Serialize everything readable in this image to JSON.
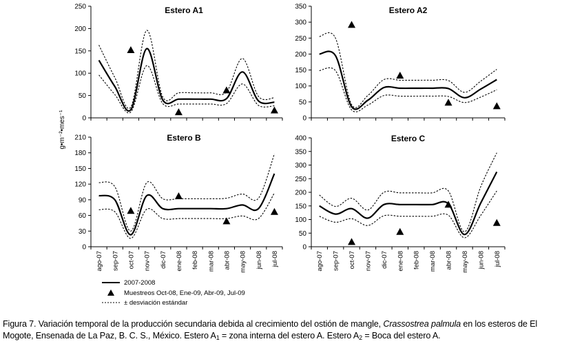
{
  "y_axis_label": "g•m⁻²•mes⁻¹",
  "legend": {
    "line_label": "2007-2008",
    "marker_label": "Muestreos Oct-08, Ene-09, Abr-09, Jul-09",
    "dash_label": "± desviación estándar"
  },
  "caption": {
    "lead": "Figura 7. Variación temporal de la producción secundaria debida al crecimiento del ostión de mangle, ",
    "species": "Crassostrea palmula",
    "rest": " en los esteros de El Mogote, Ensenada de La Paz, B. C. S., México. Estero A",
    "sub1": "1",
    "mid": " = zona interna del estero A. Estero A",
    "sub2": "2",
    "end": " = Boca del estero A."
  },
  "chart_data": [
    {
      "type": "line",
      "title": "Estero A1",
      "ylim": [
        0,
        250
      ],
      "yticks": [
        0,
        50,
        100,
        150,
        200,
        250
      ],
      "categories": [
        "ago-07",
        "sep-07",
        "oct-07",
        "nov-07",
        "dic-07",
        "ene-08",
        "feb-08",
        "mar-08",
        "abr-08",
        "may-08",
        "jun-08",
        "jul-08"
      ],
      "series": [
        {
          "name": "2007-2008",
          "values": [
            129,
            70,
            18,
            155,
            40,
            42,
            42,
            42,
            43,
            103,
            38,
            35
          ]
        },
        {
          "name": "+ desviación estándar",
          "values": [
            163,
            90,
            24,
            196,
            47,
            56,
            56,
            56,
            58,
            133,
            48,
            45
          ]
        },
        {
          "name": "- desviación estándar",
          "values": [
            96,
            52,
            13,
            117,
            32,
            31,
            31,
            31,
            32,
            76,
            28,
            27
          ]
        }
      ],
      "samples": {
        "name": "Muestreos Oct-08, Ene-09, Abr-09, Jul-09",
        "x": [
          "oct-07",
          "ene-08",
          "abr-08",
          "jul-08"
        ],
        "values": [
          152,
          13,
          62,
          17
        ]
      }
    },
    {
      "type": "line",
      "title": "Estero A2",
      "ylim": [
        0,
        350
      ],
      "yticks": [
        0,
        50,
        100,
        150,
        200,
        250,
        300,
        350
      ],
      "categories": [
        "ago-07",
        "sep-07",
        "oct-07",
        "nov-07",
        "dic-07",
        "ene-08",
        "feb-08",
        "mar-08",
        "abr-08",
        "may-08",
        "jun-08",
        "jul-08"
      ],
      "series": [
        {
          "name": "2007-2008",
          "values": [
            200,
            195,
            35,
            55,
            95,
            93,
            93,
            93,
            92,
            63,
            90,
            120
          ]
        },
        {
          "name": "+ desviación estándar",
          "values": [
            255,
            250,
            42,
            70,
            120,
            118,
            118,
            118,
            117,
            80,
            115,
            152
          ]
        },
        {
          "name": "- desviación estándar",
          "values": [
            148,
            148,
            25,
            40,
            70,
            68,
            68,
            68,
            67,
            48,
            65,
            88
          ]
        }
      ],
      "samples": {
        "name": "Muestreos Oct-08, Ene-09, Abr-09, Jul-09",
        "x": [
          "oct-07",
          "ene-08",
          "abr-08",
          "jul-08"
        ],
        "values": [
          292,
          133,
          48,
          37
        ]
      }
    },
    {
      "type": "line",
      "title": "Estero B",
      "ylim": [
        0,
        210
      ],
      "yticks": [
        0,
        30,
        60,
        90,
        120,
        150,
        180,
        210
      ],
      "categories": [
        "ago-07",
        "sep-07",
        "oct-07",
        "nov-07",
        "dic-07",
        "ene-08",
        "feb-08",
        "mar-08",
        "abr-08",
        "may-08",
        "jun-08",
        "jul-08"
      ],
      "series": [
        {
          "name": "2007-2008",
          "values": [
            98,
            90,
            23,
            98,
            73,
            73,
            73,
            73,
            73,
            80,
            73,
            140
          ]
        },
        {
          "name": "+ desviación estándar",
          "values": [
            123,
            115,
            30,
            123,
            92,
            92,
            92,
            92,
            93,
            101,
            93,
            178
          ]
        },
        {
          "name": "- desviación estándar",
          "values": [
            71,
            67,
            16,
            72,
            54,
            54,
            54,
            54,
            54,
            59,
            54,
            103
          ]
        }
      ],
      "samples": {
        "name": "Muestreos Oct-08, Ene-09, Abr-09, Jul-09",
        "x": [
          "oct-07",
          "ene-08",
          "abr-08",
          "jul-08"
        ],
        "values": [
          69,
          97,
          49,
          67
        ]
      }
    },
    {
      "type": "line",
      "title": "Estero C",
      "ylim": [
        0,
        400
      ],
      "yticks": [
        0,
        50,
        100,
        150,
        200,
        250,
        300,
        350,
        400
      ],
      "categories": [
        "ago-07",
        "sep-07",
        "oct-07",
        "nov-07",
        "dic-07",
        "ene-08",
        "feb-08",
        "mar-08",
        "abr-08",
        "may-08",
        "jun-08",
        "jul-08"
      ],
      "series": [
        {
          "name": "2007-2008",
          "values": [
            150,
            120,
            140,
            105,
            155,
            155,
            155,
            155,
            158,
            45,
            160,
            275
          ]
        },
        {
          "name": "+ desviación estándar",
          "values": [
            190,
            148,
            178,
            135,
            200,
            198,
            198,
            198,
            205,
            55,
            220,
            345
          ]
        },
        {
          "name": "- desviación estándar",
          "values": [
            112,
            90,
            103,
            78,
            114,
            112,
            112,
            112,
            116,
            33,
            115,
            205
          ]
        }
      ],
      "samples": {
        "name": "Muestreos Oct-08, Ene-09, Abr-09, Jul-09",
        "x": [
          "oct-07",
          "ene-08",
          "abr-08",
          "jul-08"
        ],
        "values": [
          18,
          55,
          155,
          88
        ]
      }
    }
  ]
}
